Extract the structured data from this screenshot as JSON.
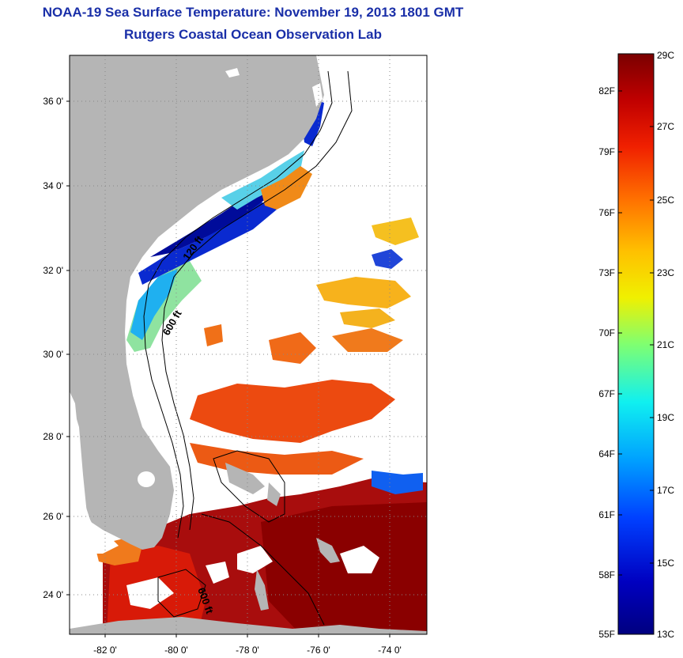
{
  "header": {
    "title": "NOAA-19 Sea Surface Temperature:  November 19, 2013 1801 GMT",
    "subtitle": "Rutgers Coastal Ocean Observation Lab"
  },
  "axes": {
    "lat_ticks": [
      "36 0'",
      "34 0'",
      "32 0'",
      "30 0'",
      "28 0'",
      "26 0'",
      "24 0'"
    ],
    "lon_ticks": [
      "-82 0'",
      "-80 0'",
      "-78 0'",
      "-76 0'",
      "-74 0'"
    ]
  },
  "contour_labels": [
    "120 ft",
    "600 ft",
    "600 ft"
  ],
  "colorbar": {
    "fahrenheit": [
      "82F",
      "79F",
      "76F",
      "73F",
      "70F",
      "67F",
      "64F",
      "61F",
      "58F",
      "55F"
    ],
    "celsius": [
      "29C",
      "27C",
      "25C",
      "23C",
      "21C",
      "19C",
      "17C",
      "15C",
      "13C"
    ],
    "colors": [
      "#7a0000",
      "#c00000",
      "#f02000",
      "#ff7000",
      "#ffc000",
      "#f0f000",
      "#80ff70",
      "#10f0f0",
      "#00a0ff",
      "#0040ff",
      "#0000c0",
      "#000080"
    ]
  },
  "colors": {
    "land": "#b5b5b5",
    "title": "#1a2fa8"
  }
}
